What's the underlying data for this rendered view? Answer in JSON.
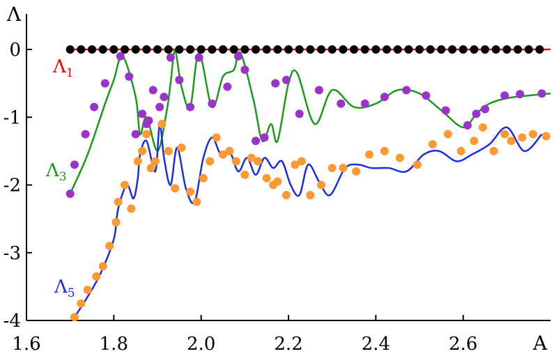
{
  "chart_data": {
    "type": "line",
    "x_label": "A",
    "y_label": "Λ",
    "xlim": [
      1.6,
      2.8
    ],
    "ylim": [
      -4,
      0
    ],
    "x_ticks": [
      "1.6",
      "1.8",
      "2.0",
      "2.2",
      "2.4",
      "2.6"
    ],
    "y_ticks": [
      "0",
      "-1",
      "-2",
      "-3",
      "-4"
    ],
    "grid": false,
    "series": [
      {
        "name": "Λ",
        "name_sub": "1",
        "line_color": "#ff0000",
        "marker_color": "#000000",
        "label_color": "#ff0000",
        "line": {
          "x": [
            1.7,
            2.8
          ],
          "y": [
            0.0,
            0.0
          ]
        },
        "points": {
          "x": [
            1.7,
            1.725,
            1.75,
            1.775,
            1.8,
            1.825,
            1.85,
            1.875,
            1.9,
            1.925,
            1.95,
            1.975,
            2.0,
            2.025,
            2.05,
            2.075,
            2.1,
            2.125,
            2.15,
            2.175,
            2.2,
            2.225,
            2.25,
            2.275,
            2.3,
            2.325,
            2.35,
            2.375,
            2.4,
            2.425,
            2.45,
            2.475,
            2.5,
            2.525,
            2.55,
            2.575,
            2.6,
            2.625,
            2.65,
            2.675,
            2.7,
            2.725,
            2.75,
            2.775
          ],
          "y": [
            0,
            0,
            0,
            0,
            0,
            0,
            0,
            0,
            0,
            0,
            0,
            0,
            0,
            0,
            0,
            0,
            0,
            0,
            0,
            0,
            0,
            0,
            0,
            0,
            0,
            0,
            0,
            0,
            0,
            0,
            0,
            0,
            0,
            0,
            0,
            0,
            0,
            0,
            0,
            0,
            0,
            0,
            0,
            0
          ]
        }
      },
      {
        "name": "Λ",
        "name_sub": "3",
        "line_color": "#1a9a1a",
        "marker_color": "#9933cc",
        "label_color": "#1a9a1a",
        "line": {
          "x": [
            1.7,
            1.74,
            1.78,
            1.8,
            1.82,
            1.85,
            1.86,
            1.875,
            1.9,
            1.92,
            1.93,
            1.94,
            1.955,
            1.975,
            1.995,
            2.025,
            2.05,
            2.075,
            2.09,
            2.12,
            2.14,
            2.16,
            2.175,
            2.2,
            2.22,
            2.26,
            2.3,
            2.35,
            2.4,
            2.45,
            2.5,
            2.55,
            2.6,
            2.63,
            2.66,
            2.7,
            2.75,
            2.8
          ],
          "y": [
            -2.13,
            -1.55,
            -0.8,
            -0.45,
            -0.1,
            -0.7,
            -1.25,
            -1.0,
            -1.5,
            -0.95,
            -0.5,
            -0.02,
            -0.55,
            -0.85,
            -0.05,
            -0.85,
            -0.4,
            -0.3,
            -0.05,
            -0.75,
            -1.35,
            -1.1,
            -1.35,
            -0.5,
            -0.35,
            -1.1,
            -0.6,
            -0.85,
            -0.8,
            -0.6,
            -0.65,
            -0.9,
            -1.15,
            -0.95,
            -0.8,
            -0.72,
            -0.68,
            -0.65
          ]
        },
        "points": {
          "x": [
            1.7,
            1.71,
            1.735,
            1.755,
            1.78,
            1.815,
            1.835,
            1.85,
            1.865,
            1.875,
            1.88,
            1.89,
            1.905,
            1.915,
            1.93,
            1.95,
            1.975,
            1.995,
            2.025,
            2.06,
            2.085,
            2.1,
            2.125,
            2.145,
            2.17,
            2.195,
            2.225,
            2.27,
            2.32,
            2.375,
            2.42,
            2.47,
            2.515,
            2.56,
            2.61,
            2.63,
            2.65,
            2.695,
            2.73,
            2.78
          ],
          "y": [
            -2.13,
            -1.7,
            -1.25,
            -0.85,
            -0.5,
            -0.1,
            -0.4,
            -1.25,
            -0.95,
            -1.1,
            -1.05,
            -0.6,
            -0.85,
            -0.7,
            -0.12,
            -0.45,
            -0.85,
            -0.12,
            -0.8,
            -0.55,
            -0.1,
            -0.3,
            -1.35,
            -1.3,
            -0.5,
            -0.45,
            -0.95,
            -0.6,
            -0.8,
            -0.8,
            -0.7,
            -0.6,
            -0.68,
            -0.9,
            -1.12,
            -0.95,
            -0.88,
            -0.68,
            -0.66,
            -0.65
          ]
        }
      },
      {
        "name": "Λ",
        "name_sub": "5",
        "line_color": "#1a2aee",
        "marker_color": "#ff9933",
        "label_color": "#1a2aee",
        "line": {
          "x": [
            1.71,
            1.74,
            1.77,
            1.8,
            1.81,
            1.83,
            1.845,
            1.855,
            1.86,
            1.875,
            1.895,
            1.905,
            1.915,
            1.93,
            1.945,
            1.965,
            1.985,
            2.005,
            2.025,
            2.045,
            2.065,
            2.085,
            2.105,
            2.125,
            2.145,
            2.165,
            2.185,
            2.205,
            2.225,
            2.245,
            2.27,
            2.295,
            2.33,
            2.36,
            2.39,
            2.43,
            2.47,
            2.51,
            2.545,
            2.585,
            2.62,
            2.66,
            2.7,
            2.74,
            2.78
          ],
          "y": [
            -3.95,
            -3.65,
            -3.3,
            -2.8,
            -2.35,
            -2.0,
            -2.2,
            -1.9,
            -1.55,
            -1.35,
            -1.8,
            -1.1,
            -1.6,
            -2.0,
            -1.45,
            -2.05,
            -2.25,
            -1.6,
            -1.3,
            -1.55,
            -1.5,
            -1.8,
            -1.6,
            -1.85,
            -1.6,
            -1.75,
            -1.65,
            -2.0,
            -2.15,
            -1.7,
            -1.95,
            -2.15,
            -1.75,
            -1.7,
            -1.75,
            -1.75,
            -1.8,
            -1.55,
            -1.5,
            -1.65,
            -1.55,
            -1.4,
            -1.15,
            -1.5,
            -1.25
          ]
        },
        "points": {
          "x": [
            1.71,
            1.725,
            1.74,
            1.76,
            1.775,
            1.79,
            1.805,
            1.81,
            1.825,
            1.84,
            1.855,
            1.865,
            1.875,
            1.885,
            1.895,
            1.91,
            1.925,
            1.94,
            1.955,
            1.975,
            1.99,
            2.005,
            2.02,
            2.035,
            2.05,
            2.065,
            2.08,
            2.1,
            2.115,
            2.13,
            2.15,
            2.165,
            2.175,
            2.195,
            2.215,
            2.23,
            2.25,
            2.275,
            2.3,
            2.325,
            2.355,
            2.385,
            2.42,
            2.455,
            2.495,
            2.53,
            2.565,
            2.595,
            2.625,
            2.645,
            2.67,
            2.695,
            2.71,
            2.735,
            2.76,
            2.79
          ],
          "y": [
            -3.95,
            -3.75,
            -3.55,
            -3.35,
            -3.2,
            -2.9,
            -2.55,
            -2.25,
            -2.0,
            -2.35,
            -1.65,
            -1.5,
            -1.25,
            -1.75,
            -1.65,
            -1.1,
            -1.5,
            -2.05,
            -1.45,
            -2.1,
            -2.25,
            -1.9,
            -1.65,
            -1.3,
            -1.55,
            -1.5,
            -1.65,
            -1.85,
            -1.6,
            -1.65,
            -1.9,
            -2.0,
            -1.95,
            -2.15,
            -1.7,
            -1.65,
            -2.15,
            -2.0,
            -1.75,
            -1.75,
            -1.8,
            -1.55,
            -1.5,
            -1.6,
            -1.7,
            -1.4,
            -1.25,
            -1.5,
            -1.35,
            -1.15,
            -1.5,
            -1.25,
            -1.35,
            -1.3,
            -1.25,
            -1.28
          ]
        }
      }
    ]
  }
}
